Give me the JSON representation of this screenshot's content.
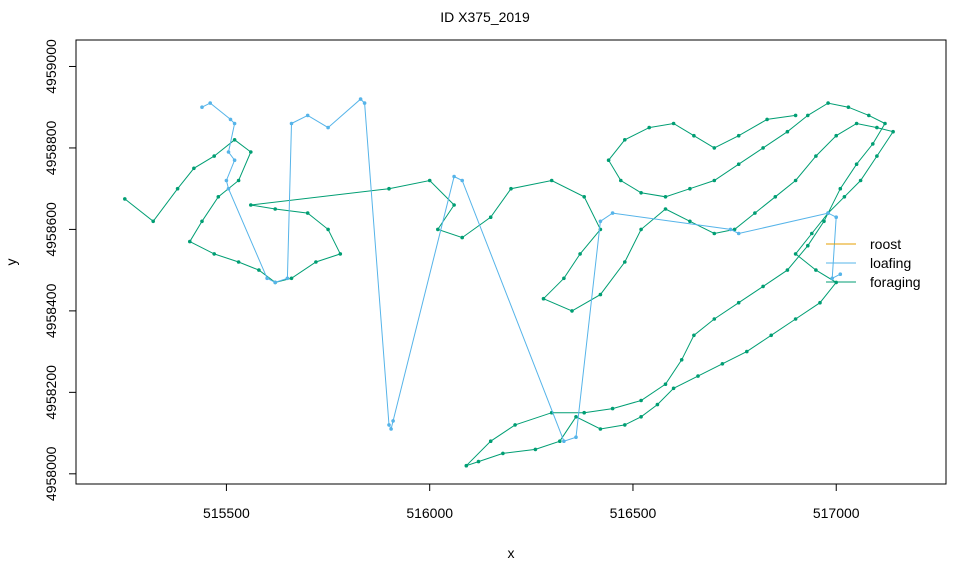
{
  "chart_data": {
    "type": "scatter",
    "title": "ID X375_2019",
    "xlabel": "x",
    "ylabel": "y",
    "xlim": [
      515130,
      517270
    ],
    "ylim": [
      4957975,
      4959065
    ],
    "x_ticks": [
      515500,
      516000,
      516500,
      517000
    ],
    "x_tick_labels": [
      "515500",
      "516000",
      "516500",
      "517000"
    ],
    "y_ticks": [
      4958000,
      4958200,
      4958400,
      4958600,
      4958800,
      4959000
    ],
    "y_tick_labels": [
      "4958000",
      "4958200",
      "4958400",
      "4958600",
      "4958800",
      "4959000"
    ],
    "grid": false,
    "legend": {
      "placement": "right",
      "entries": [
        {
          "label": "roost",
          "color": "#E69F00"
        },
        {
          "label": "loafing",
          "color": "#56B4E9"
        },
        {
          "label": "foraging",
          "color": "#009E73"
        }
      ]
    },
    "series": [
      {
        "name": "foraging",
        "color": "#009E73",
        "points": [
          [
            515250,
            4958675
          ],
          [
            515320,
            4958620
          ],
          [
            515380,
            4958700
          ],
          [
            515420,
            4958750
          ],
          [
            515470,
            4958780
          ],
          [
            515520,
            4958820
          ],
          [
            515560,
            4958790
          ],
          [
            515530,
            4958720
          ],
          [
            515480,
            4958680
          ],
          [
            515440,
            4958620
          ],
          [
            515410,
            4958570
          ],
          [
            515470,
            4958540
          ],
          [
            515530,
            4958520
          ],
          [
            515580,
            4958500
          ],
          [
            515620,
            4958470
          ],
          [
            515660,
            4958480
          ],
          [
            515720,
            4958520
          ],
          [
            515780,
            4958540
          ],
          [
            515750,
            4958600
          ],
          [
            515700,
            4958640
          ],
          [
            515620,
            4958650
          ],
          [
            515560,
            4958660
          ],
          [
            515900,
            4958700
          ],
          [
            516000,
            4958720
          ],
          [
            516060,
            4958660
          ],
          [
            516020,
            4958600
          ],
          [
            516080,
            4958580
          ],
          [
            516150,
            4958630
          ],
          [
            516200,
            4958700
          ],
          [
            516300,
            4958720
          ],
          [
            516380,
            4958680
          ],
          [
            516420,
            4958600
          ],
          [
            516370,
            4958540
          ],
          [
            516330,
            4958480
          ],
          [
            516280,
            4958430
          ],
          [
            516350,
            4958400
          ],
          [
            516420,
            4958440
          ],
          [
            516480,
            4958520
          ],
          [
            516520,
            4958600
          ],
          [
            516580,
            4958650
          ],
          [
            516640,
            4958620
          ],
          [
            516700,
            4958590
          ],
          [
            516750,
            4958600
          ],
          [
            516800,
            4958640
          ],
          [
            516850,
            4958680
          ],
          [
            516900,
            4958720
          ],
          [
            516950,
            4958780
          ],
          [
            517000,
            4958830
          ],
          [
            517050,
            4958860
          ],
          [
            517100,
            4958850
          ],
          [
            517140,
            4958840
          ],
          [
            517100,
            4958780
          ],
          [
            517060,
            4958720
          ],
          [
            517020,
            4958680
          ],
          [
            516980,
            4958640
          ],
          [
            516940,
            4958590
          ],
          [
            516900,
            4958540
          ],
          [
            516950,
            4958500
          ],
          [
            517000,
            4958470
          ],
          [
            516960,
            4958420
          ],
          [
            516900,
            4958380
          ],
          [
            516840,
            4958340
          ],
          [
            516780,
            4958300
          ],
          [
            516720,
            4958270
          ],
          [
            516660,
            4958240
          ],
          [
            516600,
            4958210
          ],
          [
            516560,
            4958170
          ],
          [
            516520,
            4958140
          ],
          [
            516480,
            4958120
          ],
          [
            516420,
            4958110
          ],
          [
            516360,
            4958140
          ],
          [
            516320,
            4958080
          ],
          [
            516260,
            4958060
          ],
          [
            516180,
            4958050
          ],
          [
            516120,
            4958030
          ],
          [
            516090,
            4958020
          ],
          [
            516150,
            4958080
          ],
          [
            516210,
            4958120
          ],
          [
            516300,
            4958150
          ],
          [
            516380,
            4958150
          ],
          [
            516450,
            4958160
          ],
          [
            516520,
            4958180
          ],
          [
            516580,
            4958220
          ],
          [
            516620,
            4958280
          ],
          [
            516650,
            4958340
          ],
          [
            516700,
            4958380
          ],
          [
            516760,
            4958420
          ],
          [
            516820,
            4958460
          ],
          [
            516880,
            4958500
          ],
          [
            516930,
            4958560
          ],
          [
            516970,
            4958620
          ],
          [
            517010,
            4958700
          ],
          [
            517050,
            4958760
          ],
          [
            517090,
            4958810
          ],
          [
            517120,
            4958860
          ],
          [
            517080,
            4958880
          ],
          [
            517030,
            4958900
          ],
          [
            516980,
            4958910
          ],
          [
            516930,
            4958880
          ],
          [
            516880,
            4958840
          ],
          [
            516820,
            4958800
          ],
          [
            516760,
            4958760
          ],
          [
            516700,
            4958720
          ],
          [
            516640,
            4958700
          ],
          [
            516580,
            4958680
          ],
          [
            516520,
            4958690
          ],
          [
            516470,
            4958720
          ],
          [
            516440,
            4958770
          ],
          [
            516480,
            4958820
          ],
          [
            516540,
            4958850
          ],
          [
            516600,
            4958860
          ],
          [
            516650,
            4958830
          ],
          [
            516700,
            4958800
          ],
          [
            516760,
            4958830
          ],
          [
            516830,
            4958870
          ],
          [
            516900,
            4958880
          ]
        ]
      },
      {
        "name": "loafing",
        "color": "#56B4E9",
        "points": [
          [
            515440,
            4958900
          ],
          [
            515460,
            4958910
          ],
          [
            515510,
            4958870
          ],
          [
            515520,
            4958860
          ],
          [
            515505,
            4958790
          ],
          [
            515520,
            4958770
          ],
          [
            515500,
            4958720
          ],
          [
            515505,
            4958700
          ],
          [
            515600,
            4958480
          ],
          [
            515620,
            4958470
          ],
          [
            515650,
            4958480
          ],
          [
            515660,
            4958860
          ],
          [
            515700,
            4958880
          ],
          [
            515750,
            4958850
          ],
          [
            515830,
            4958920
          ],
          [
            515840,
            4958910
          ],
          [
            515900,
            4958120
          ],
          [
            515905,
            4958110
          ],
          [
            515910,
            4958130
          ],
          [
            516060,
            4958730
          ],
          [
            516080,
            4958720
          ],
          [
            516330,
            4958080
          ],
          [
            516360,
            4958090
          ],
          [
            516420,
            4958620
          ],
          [
            516450,
            4958640
          ],
          [
            516740,
            4958600
          ],
          [
            516760,
            4958590
          ],
          [
            516980,
            4958640
          ],
          [
            517000,
            4958630
          ],
          [
            516990,
            4958480
          ],
          [
            517010,
            4958490
          ]
        ]
      }
    ]
  }
}
